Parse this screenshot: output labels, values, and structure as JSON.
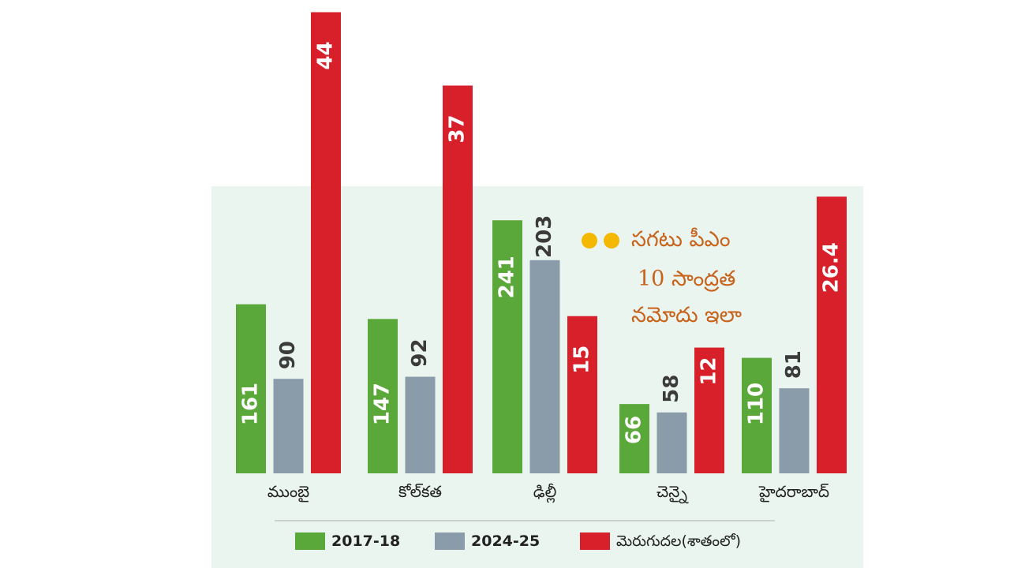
{
  "chart_data": {
    "type": "bar",
    "categories": [
      "ముంబై",
      "కోల్‌కత",
      "ఢిల్లీ",
      "చెన్నై",
      "హైదరాబాద్"
    ],
    "series": [
      {
        "name": "2017-18",
        "values": [
          "161",
          "147",
          "241",
          "66",
          "110"
        ],
        "color": "#5ba83a"
      },
      {
        "name": "2024-25",
        "values": [
          "90",
          "92",
          "203",
          "58",
          "81"
        ],
        "color": "#8a9caa"
      },
      {
        "name": "మెరుగుదల(శాతంలో)",
        "values": [
          "44",
          "37",
          "15",
          "12",
          "26.4"
        ],
        "color": "#d7202a"
      }
    ],
    "label_color_inside": "#ffffff",
    "label_color_outside": "#3b3b3b",
    "note_lines": [
      "సగటు పీఎం",
      "10 సాంద్రత",
      "నమోదు ఇలా"
    ],
    "note_color": "#c8631c",
    "panel_color": "#eaf5ef",
    "grid": false,
    "legend_position": "bottom"
  }
}
